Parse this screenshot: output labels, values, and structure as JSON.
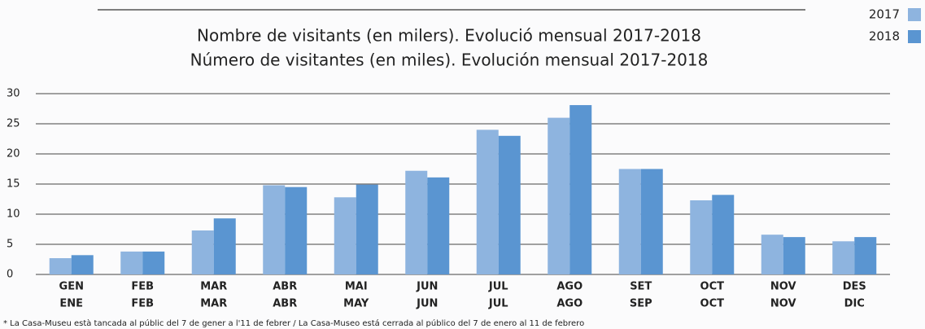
{
  "chart_data": {
    "type": "bar",
    "title": "Nombre de visitants (en milers). Evolució mensual 2017-2018",
    "subtitle": "Número de visitantes (en miles). Evolución mensual 2017-2018",
    "categories": [
      [
        "GEN",
        "ENE"
      ],
      [
        "FEB",
        "FEB"
      ],
      [
        "MAR",
        "MAR"
      ],
      [
        "ABR",
        "ABR"
      ],
      [
        "MAI",
        "MAY"
      ],
      [
        "JUN",
        "JUN"
      ],
      [
        "JUL",
        "JUL"
      ],
      [
        "AGO",
        "AGO"
      ],
      [
        "SET",
        "SEP"
      ],
      [
        "OCT",
        "OCT"
      ],
      [
        "NOV",
        "NOV"
      ],
      [
        "DES",
        "DIC"
      ]
    ],
    "series": [
      {
        "name": "2017",
        "color": "#8eb4df",
        "values": [
          2.7,
          3.8,
          7.3,
          14.8,
          12.8,
          17.2,
          24,
          26,
          17.5,
          12.3,
          6.6,
          5.5
        ]
      },
      {
        "name": "2018",
        "color": "#5a95d1",
        "values": [
          3.2,
          3.8,
          9.3,
          14.5,
          14.9,
          16.1,
          23,
          28.1,
          17.5,
          13.2,
          6.2,
          6.2
        ]
      }
    ],
    "ylim": [
      0,
      30
    ],
    "yticks": [
      0,
      5,
      10,
      15,
      20,
      25,
      30
    ],
    "grid": true,
    "legend": "top-right",
    "footnote": "* La Casa-Museu està tancada al públic del 7 de gener a l'11 de febrer / La Casa-Museo está cerrada al público del 7 de enero al 11 de febrero"
  }
}
